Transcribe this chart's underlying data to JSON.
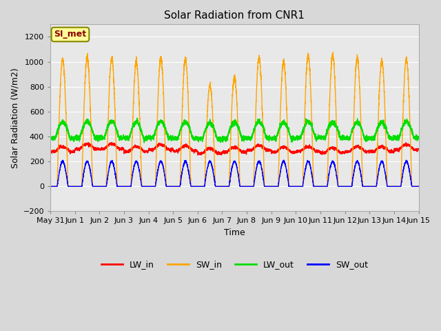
{
  "title": "Solar Radiation from CNR1",
  "ylabel": "Solar Radiation (W/m2)",
  "xlabel": "Time",
  "annotation": "SI_met",
  "ylim": [
    -200,
    1300
  ],
  "yticks": [
    -200,
    0,
    200,
    400,
    600,
    800,
    1000,
    1200
  ],
  "x_tick_labels": [
    "May 31",
    "Jun 1",
    "Jun 2",
    "Jun 3",
    "Jun 4",
    "Jun 5",
    "Jun 6",
    "Jun 7",
    "Jun 8",
    "Jun 9",
    "Jun 10",
    "Jun 11",
    "Jun 12",
    "Jun 13",
    "Jun 14",
    "Jun 15"
  ],
  "colors": {
    "LW_in": "#ff0000",
    "SW_in": "#ffa500",
    "LW_out": "#00dd00",
    "SW_out": "#0000ff"
  },
  "bg_color": "#d8d8d8",
  "plot_bg_color": "#e8e8e8",
  "grid_color": "#ffffff",
  "n_days": 15,
  "pts_per_day": 288,
  "sw_in_peaks": [
    1020,
    1030,
    1030,
    1000,
    1035,
    1020,
    810,
    880,
    1030,
    1000,
    1050,
    1060,
    1030,
    1010,
    1020
  ],
  "lw_in_base": [
    278,
    300,
    300,
    280,
    295,
    285,
    265,
    275,
    290,
    275,
    280,
    270,
    280,
    280,
    295
  ],
  "lw_out_base": [
    385,
    390,
    390,
    385,
    390,
    385,
    380,
    385,
    390,
    385,
    390,
    390,
    385,
    385,
    390
  ],
  "sw_out_peak": 200
}
